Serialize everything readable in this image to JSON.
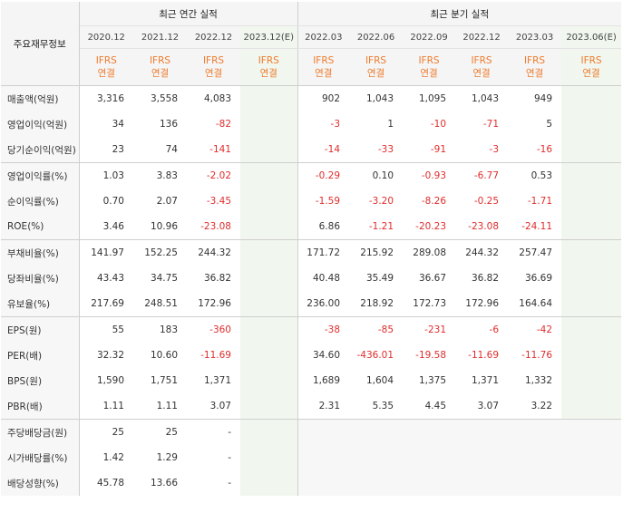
{
  "corner_label": "주요재무정보",
  "annual_header": "최근 연간 실적",
  "quarterly_header": "최근 분기 실적",
  "annual_periods": [
    "2020.12",
    "2021.12",
    "2022.12",
    "2023.12(E)"
  ],
  "quarterly_periods": [
    "2022.03",
    "2022.06",
    "2022.09",
    "2022.12",
    "2023.03",
    "2023.06(E)"
  ],
  "ifrs_label": "IFRS",
  "consolidated_label": "연결",
  "rows": [
    {
      "label": "매출액(억원)",
      "annual": [
        "3,316",
        "3,558",
        "4,083",
        ""
      ],
      "quarterly": [
        "902",
        "1,043",
        "1,095",
        "1,043",
        "949",
        ""
      ]
    },
    {
      "label": "영업이익(억원)",
      "annual": [
        "34",
        "136",
        "-82",
        ""
      ],
      "quarterly": [
        "-3",
        "1",
        "-10",
        "-71",
        "5",
        ""
      ]
    },
    {
      "label": "당기순이익(억원)",
      "annual": [
        "23",
        "74",
        "-141",
        ""
      ],
      "quarterly": [
        "-14",
        "-33",
        "-91",
        "-3",
        "-16",
        ""
      ]
    },
    {
      "label": "영업이익률(%)",
      "annual": [
        "1.03",
        "3.83",
        "-2.02",
        ""
      ],
      "quarterly": [
        "-0.29",
        "0.10",
        "-0.93",
        "-6.77",
        "0.53",
        ""
      ]
    },
    {
      "label": "순이익률(%)",
      "annual": [
        "0.70",
        "2.07",
        "-3.45",
        ""
      ],
      "quarterly": [
        "-1.59",
        "-3.20",
        "-8.26",
        "-0.25",
        "-1.71",
        ""
      ]
    },
    {
      "label": "ROE(%)",
      "annual": [
        "3.46",
        "10.96",
        "-23.08",
        ""
      ],
      "quarterly": [
        "6.86",
        "-1.21",
        "-20.23",
        "-23.08",
        "-24.11",
        ""
      ]
    },
    {
      "label": "부채비율(%)",
      "annual": [
        "141.97",
        "152.25",
        "244.32",
        ""
      ],
      "quarterly": [
        "171.72",
        "215.92",
        "289.08",
        "244.32",
        "257.47",
        ""
      ]
    },
    {
      "label": "당좌비율(%)",
      "annual": [
        "43.43",
        "34.75",
        "36.82",
        ""
      ],
      "quarterly": [
        "40.48",
        "35.49",
        "36.67",
        "36.82",
        "36.69",
        ""
      ]
    },
    {
      "label": "유보율(%)",
      "annual": [
        "217.69",
        "248.51",
        "172.96",
        ""
      ],
      "quarterly": [
        "236.00",
        "218.92",
        "172.73",
        "172.96",
        "164.64",
        ""
      ]
    },
    {
      "label": "EPS(원)",
      "annual": [
        "55",
        "183",
        "-360",
        ""
      ],
      "quarterly": [
        "-38",
        "-85",
        "-231",
        "-6",
        "-42",
        ""
      ]
    },
    {
      "label": "PER(배)",
      "annual": [
        "32.32",
        "10.60",
        "-11.69",
        ""
      ],
      "quarterly": [
        "34.60",
        "-436.01",
        "-19.58",
        "-11.69",
        "-11.76",
        ""
      ]
    },
    {
      "label": "BPS(원)",
      "annual": [
        "1,590",
        "1,751",
        "1,371",
        ""
      ],
      "quarterly": [
        "1,689",
        "1,604",
        "1,375",
        "1,371",
        "1,332",
        ""
      ]
    },
    {
      "label": "PBR(배)",
      "annual": [
        "1.11",
        "1.11",
        "3.07",
        ""
      ],
      "quarterly": [
        "2.31",
        "5.35",
        "4.45",
        "3.07",
        "3.22",
        ""
      ]
    },
    {
      "label": "주당배당금(원)",
      "annual": [
        "25",
        "25",
        "-",
        ""
      ],
      "quarterly": []
    },
    {
      "label": "시가배당률(%)",
      "annual": [
        "1.42",
        "1.29",
        "-",
        ""
      ],
      "quarterly": []
    },
    {
      "label": "배당성향(%)",
      "annual": [
        "45.78",
        "13.66",
        "-",
        ""
      ],
      "quarterly": []
    }
  ],
  "row_groups_start": [
    0,
    3,
    6,
    9,
    13
  ]
}
